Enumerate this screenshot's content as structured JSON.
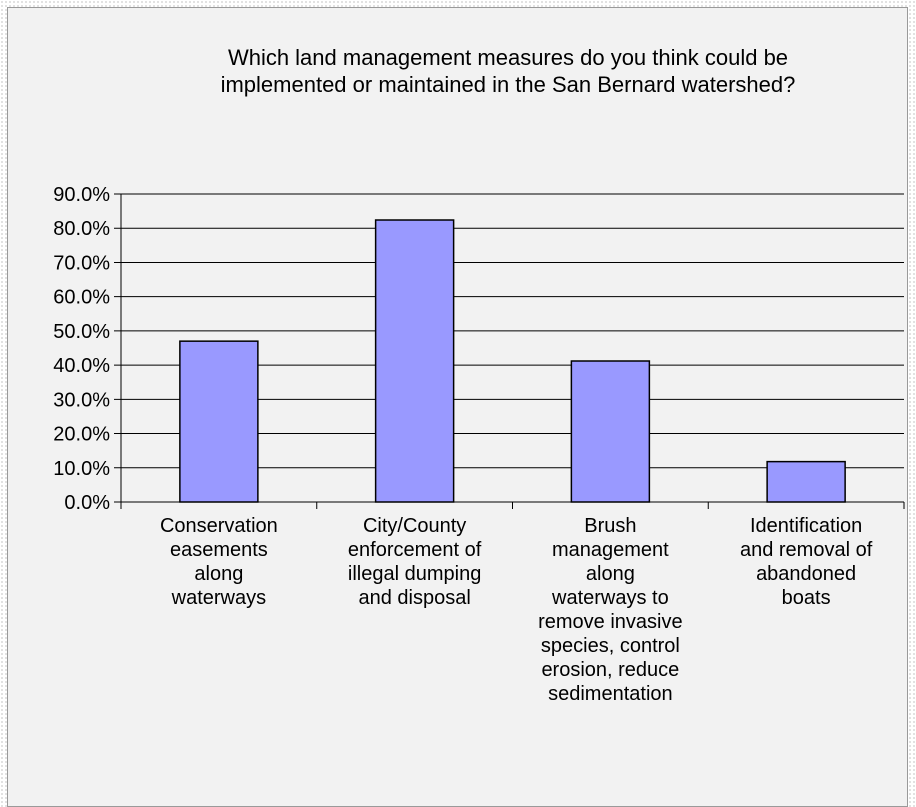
{
  "chart_data": {
    "type": "bar",
    "title": "Which land management measures do you think could be\nimplemented or maintained in the San Bernard watershed?",
    "categories": [
      "Conservation\neasements\nalong\nwaterways",
      "City/County\nenforcement of\nillegal dumping\nand disposal",
      "Brush\nmanagement\nalong\nwaterways to\nremove invasive\nspecies, control\nerosion, reduce\nsedimentation",
      "Identification\nand removal of\nabandoned\nboats"
    ],
    "values": [
      47.0,
      82.4,
      41.2,
      11.8
    ],
    "ylim": [
      0,
      90
    ],
    "yticks": [
      "0.0%",
      "10.0%",
      "20.0%",
      "30.0%",
      "40.0%",
      "50.0%",
      "60.0%",
      "70.0%",
      "80.0%",
      "90.0%"
    ],
    "xlabel": "",
    "ylabel": "",
    "grid": true,
    "legend": "none",
    "colors": {
      "bar_fill": "#9999ff",
      "bar_stroke": "#000000",
      "gridline": "#000000",
      "plot_background": "#f2f2f2"
    }
  }
}
